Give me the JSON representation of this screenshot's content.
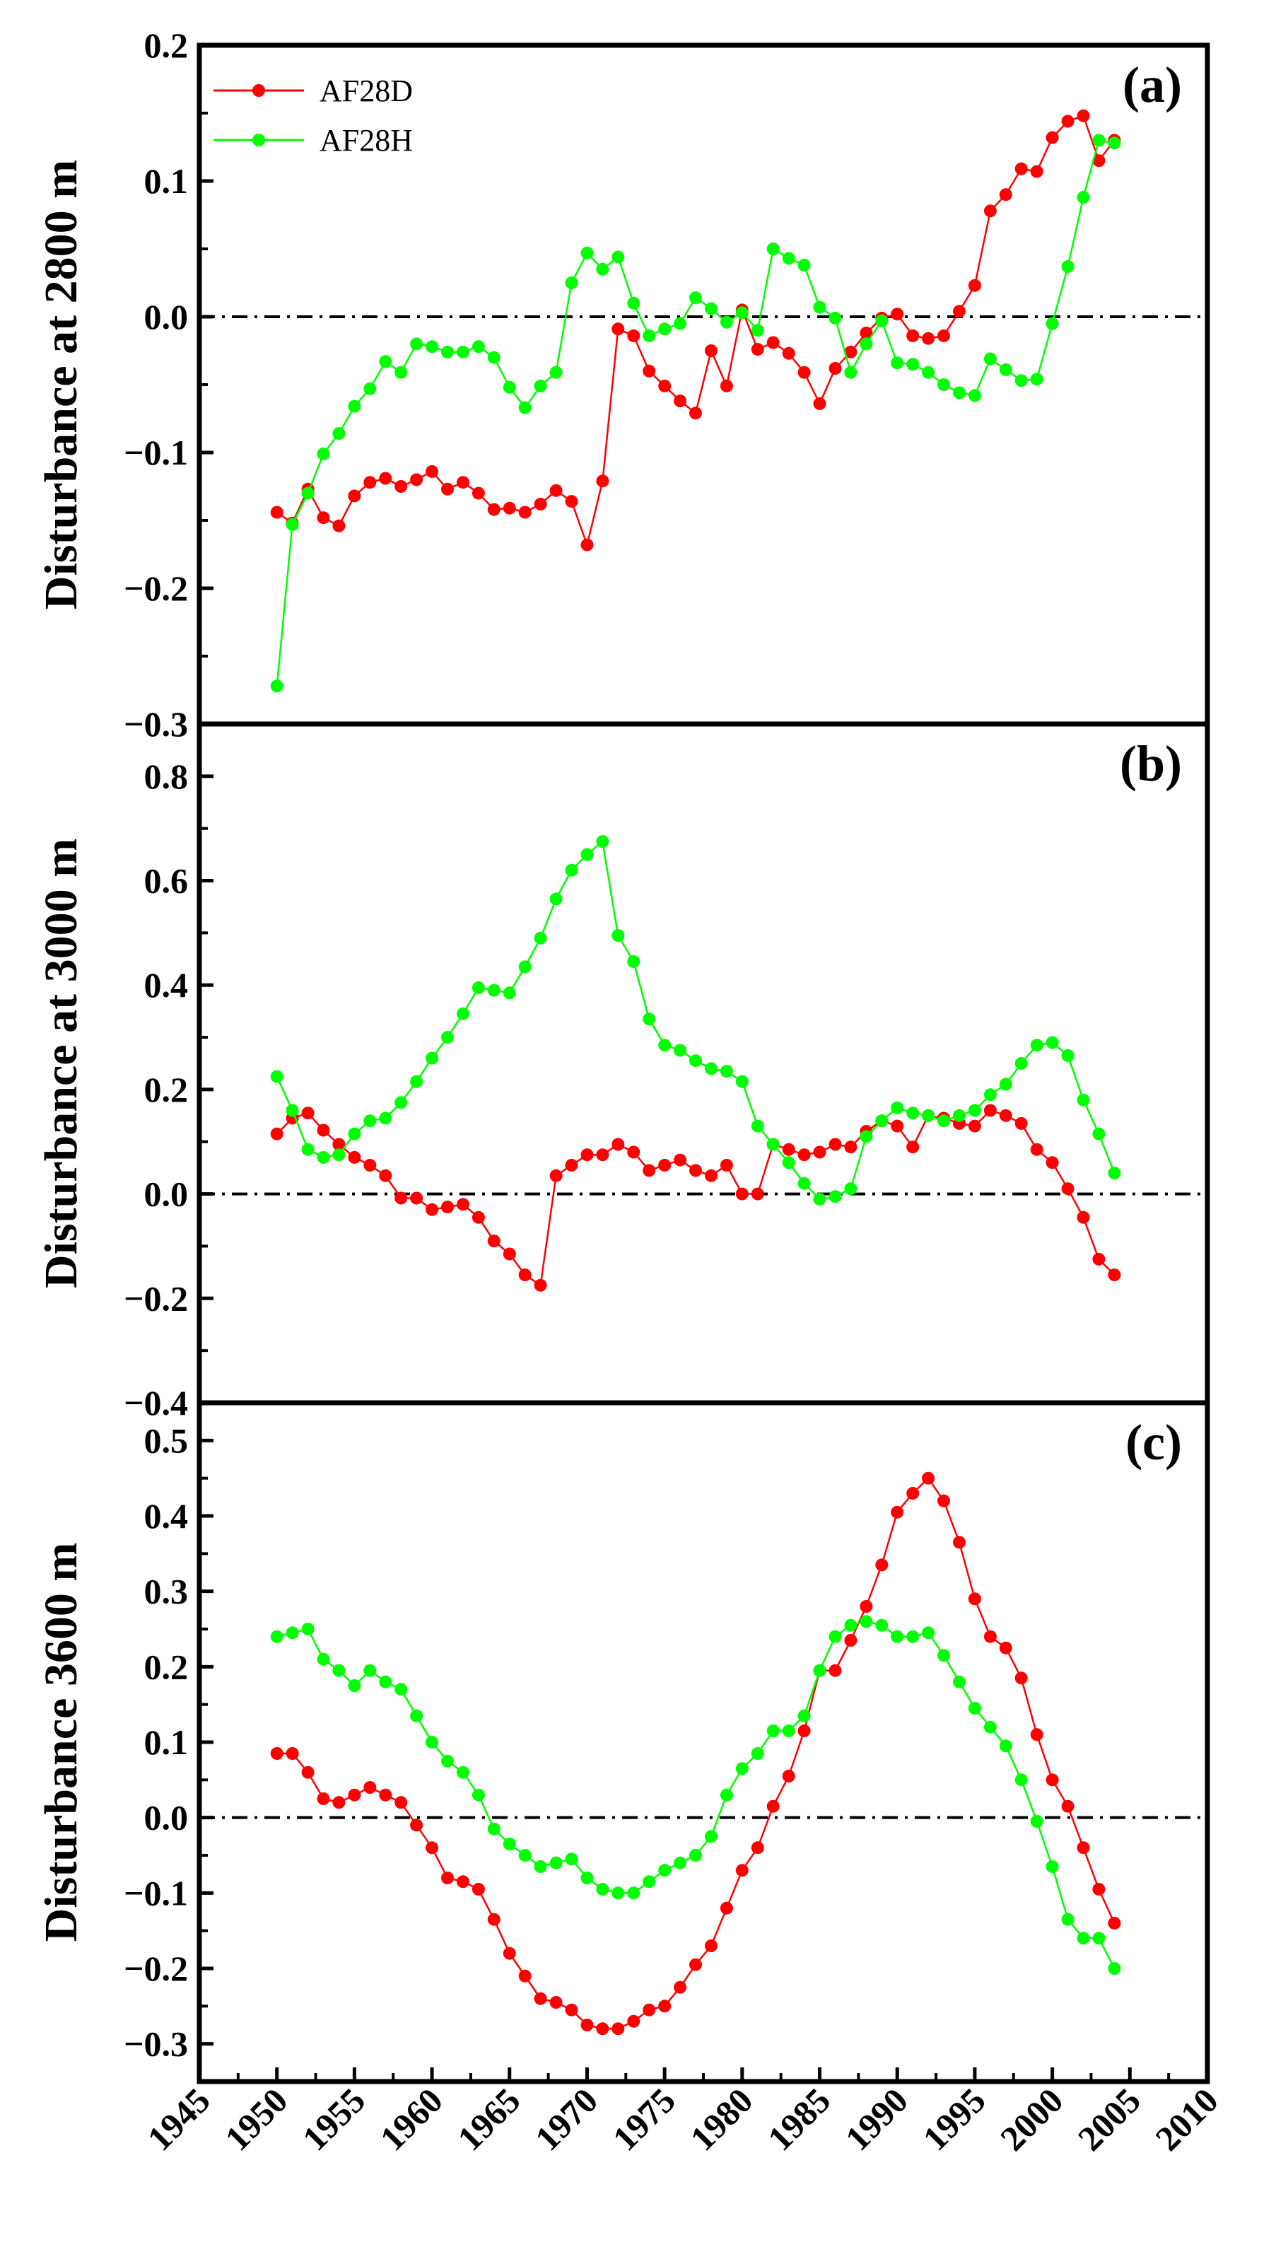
{
  "chart_data": {
    "type": "line",
    "xlim": [
      1945,
      2010
    ],
    "x_ticks": [
      1945,
      1950,
      1955,
      1960,
      1965,
      1970,
      1975,
      1980,
      1985,
      1990,
      1995,
      2000,
      2005,
      2010
    ],
    "x": [
      1950,
      1951,
      1952,
      1953,
      1954,
      1955,
      1956,
      1957,
      1958,
      1959,
      1960,
      1961,
      1962,
      1963,
      1964,
      1965,
      1966,
      1967,
      1968,
      1969,
      1970,
      1971,
      1972,
      1973,
      1974,
      1975,
      1976,
      1977,
      1978,
      1979,
      1980,
      1981,
      1982,
      1983,
      1984,
      1985,
      1986,
      1987,
      1988,
      1989,
      1990,
      1991,
      1992,
      1993,
      1994,
      1995,
      1996,
      1997,
      1998,
      1999,
      2000,
      2001,
      2002,
      2003,
      2004
    ],
    "legend": [
      {
        "name": "AF28D",
        "color": "#ff0000"
      },
      {
        "name": "AF28H",
        "color": "#00ff00"
      }
    ],
    "panels": [
      {
        "label": "(a)",
        "ylabel": "Disturbance at 2800 m",
        "ylim": [
          -0.3,
          0.2
        ],
        "y_ticks": [
          -0.3,
          -0.2,
          -0.1,
          0.0,
          0.1,
          0.2
        ],
        "y_tick_labels": [
          "−0.3",
          "−0.2",
          "−0.1",
          "0.0",
          "0.1",
          "0.2"
        ],
        "series": [
          {
            "name": "AF28D",
            "values": [
              -0.144,
              -0.152,
              -0.127,
              -0.148,
              -0.154,
              -0.132,
              -0.122,
              -0.119,
              -0.125,
              -0.12,
              -0.114,
              -0.127,
              -0.122,
              -0.13,
              -0.142,
              -0.141,
              -0.144,
              -0.138,
              -0.128,
              -0.136,
              -0.168,
              -0.121,
              -0.009,
              -0.014,
              -0.04,
              -0.051,
              -0.062,
              -0.071,
              -0.025,
              -0.051,
              0.005,
              -0.024,
              -0.019,
              -0.027,
              -0.041,
              -0.064,
              -0.038,
              -0.026,
              -0.012,
              -0.001,
              0.002,
              -0.014,
              -0.016,
              -0.014,
              0.004,
              0.023,
              0.078,
              0.09,
              0.109,
              0.107,
              0.132,
              0.144,
              0.148,
              0.115,
              0.13
            ]
          },
          {
            "name": "AF28H",
            "values": [
              -0.272,
              -0.153,
              -0.13,
              -0.101,
              -0.086,
              -0.066,
              -0.053,
              -0.033,
              -0.041,
              -0.02,
              -0.022,
              -0.026,
              -0.026,
              -0.022,
              -0.03,
              -0.052,
              -0.067,
              -0.051,
              -0.041,
              0.025,
              0.047,
              0.035,
              0.044,
              0.01,
              -0.014,
              -0.009,
              -0.005,
              0.014,
              0.006,
              -0.004,
              0.003,
              -0.01,
              0.05,
              0.043,
              0.038,
              0.007,
              -0.001,
              -0.041,
              -0.02,
              -0.003,
              -0.034,
              -0.035,
              -0.041,
              -0.05,
              -0.056,
              -0.058,
              -0.031,
              -0.039,
              -0.047,
              -0.046,
              -0.005,
              0.037,
              0.088,
              0.13,
              0.128
            ]
          }
        ]
      },
      {
        "label": "(b)",
        "ylabel": "Disturbance at 3000 m",
        "ylim": [
          -0.4,
          0.9
        ],
        "y_ticks": [
          -0.4,
          -0.2,
          0.0,
          0.2,
          0.4,
          0.6,
          0.8
        ],
        "y_tick_labels": [
          "−0.4",
          "−0.2",
          "0.0",
          "0.2",
          "0.4",
          "0.6",
          "0.8"
        ],
        "series": [
          {
            "name": "AF28D",
            "values": [
              0.115,
              0.145,
              0.155,
              0.122,
              0.095,
              0.07,
              0.055,
              0.035,
              -0.008,
              -0.008,
              -0.03,
              -0.025,
              -0.02,
              -0.045,
              -0.09,
              -0.115,
              -0.155,
              -0.175,
              0.035,
              0.055,
              0.075,
              0.075,
              0.095,
              0.08,
              0.045,
              0.055,
              0.065,
              0.045,
              0.035,
              0.055,
              0.0,
              0.0,
              0.095,
              0.085,
              0.075,
              0.08,
              0.095,
              0.09,
              0.12,
              0.14,
              0.13,
              0.09,
              0.15,
              0.145,
              0.135,
              0.13,
              0.16,
              0.15,
              0.135,
              0.085,
              0.06,
              0.01,
              -0.045,
              -0.125,
              -0.155
            ]
          },
          {
            "name": "AF28H",
            "values": [
              0.225,
              0.16,
              0.085,
              0.07,
              0.075,
              0.115,
              0.14,
              0.145,
              0.175,
              0.215,
              0.26,
              0.3,
              0.345,
              0.395,
              0.39,
              0.385,
              0.435,
              0.49,
              0.565,
              0.62,
              0.65,
              0.675,
              0.495,
              0.445,
              0.335,
              0.285,
              0.275,
              0.255,
              0.24,
              0.235,
              0.215,
              0.13,
              0.095,
              0.06,
              0.02,
              -0.01,
              -0.005,
              0.01,
              0.11,
              0.14,
              0.165,
              0.155,
              0.15,
              0.14,
              0.15,
              0.16,
              0.19,
              0.21,
              0.25,
              0.285,
              0.29,
              0.265,
              0.18,
              0.115,
              0.04
            ]
          }
        ]
      },
      {
        "label": "(c)",
        "ylabel": "Disturbance 3600 m",
        "ylim": [
          -0.35,
          0.55
        ],
        "y_ticks": [
          -0.3,
          -0.2,
          -0.1,
          0.0,
          0.1,
          0.2,
          0.3,
          0.4,
          0.5
        ],
        "y_tick_labels": [
          "−0.3",
          "−0.2",
          "−0.1",
          "0.0",
          "0.1",
          "0.2",
          "0.3",
          "0.4",
          "0.5"
        ],
        "series": [
          {
            "name": "AF28D",
            "values": [
              0.085,
              0.085,
              0.06,
              0.025,
              0.02,
              0.03,
              0.04,
              0.03,
              0.02,
              -0.01,
              -0.04,
              -0.08,
              -0.085,
              -0.095,
              -0.135,
              -0.18,
              -0.21,
              -0.24,
              -0.245,
              -0.255,
              -0.275,
              -0.28,
              -0.28,
              -0.27,
              -0.255,
              -0.25,
              -0.225,
              -0.195,
              -0.17,
              -0.12,
              -0.07,
              -0.04,
              0.015,
              0.055,
              0.115,
              0.195,
              0.195,
              0.235,
              0.28,
              0.335,
              0.405,
              0.43,
              0.45,
              0.42,
              0.365,
              0.29,
              0.24,
              0.225,
              0.185,
              0.11,
              0.05,
              0.015,
              -0.04,
              -0.095,
              -0.14
            ]
          },
          {
            "name": "AF28H",
            "values": [
              0.24,
              0.245,
              0.25,
              0.21,
              0.195,
              0.175,
              0.195,
              0.18,
              0.17,
              0.135,
              0.1,
              0.075,
              0.06,
              0.03,
              -0.015,
              -0.035,
              -0.05,
              -0.065,
              -0.06,
              -0.055,
              -0.08,
              -0.095,
              -0.1,
              -0.1,
              -0.085,
              -0.07,
              -0.06,
              -0.05,
              -0.025,
              0.03,
              0.065,
              0.085,
              0.115,
              0.115,
              0.135,
              0.195,
              0.24,
              0.255,
              0.26,
              0.255,
              0.24,
              0.24,
              0.245,
              0.215,
              0.18,
              0.145,
              0.12,
              0.095,
              0.05,
              -0.005,
              -0.065,
              -0.135,
              -0.16,
              -0.16,
              -0.2
            ]
          }
        ]
      }
    ]
  }
}
